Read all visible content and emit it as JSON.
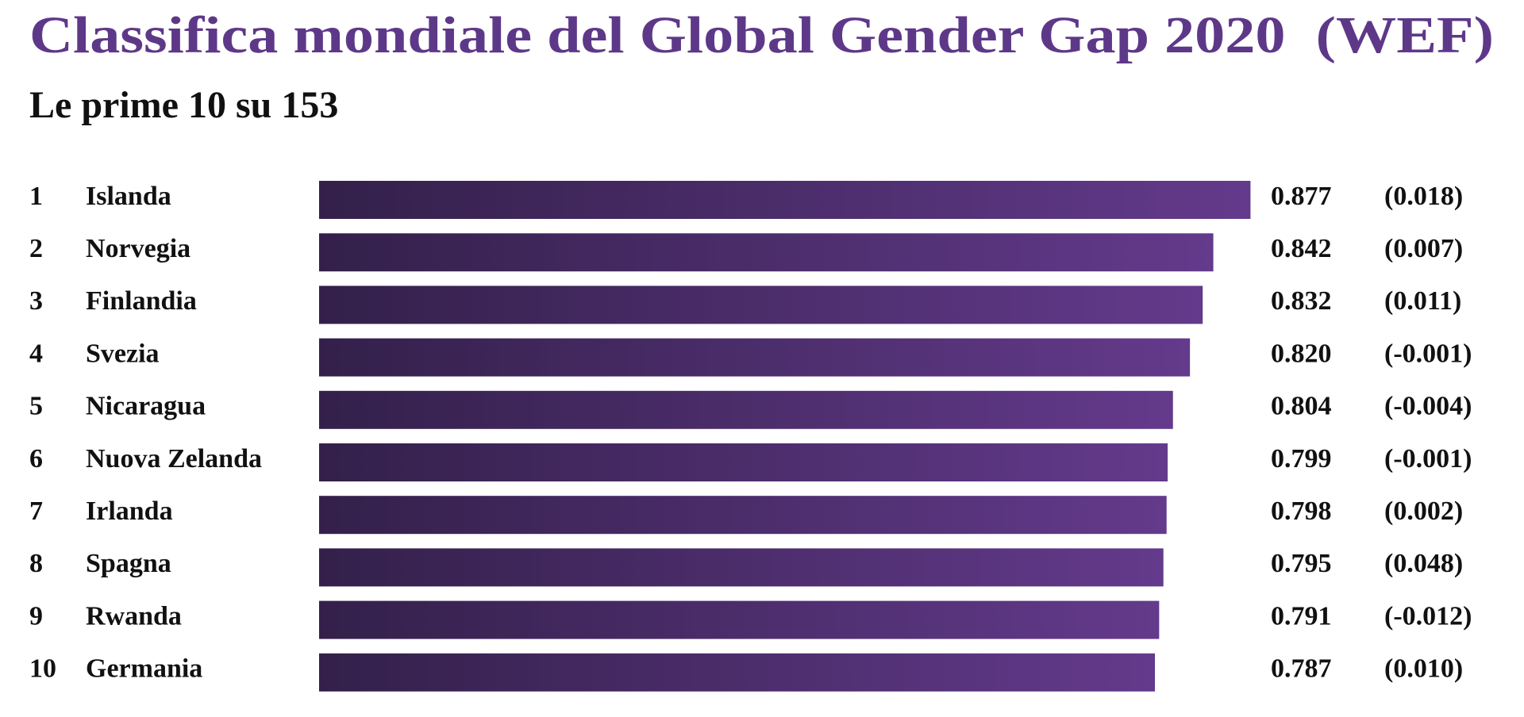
{
  "chart_data": {
    "type": "bar",
    "orientation": "horizontal",
    "title": "Classifica mondiale del Global Gender Gap 2020  (WEF)",
    "subtitle": "Le prime 10 su 153",
    "ranks": [
      1,
      2,
      3,
      4,
      5,
      6,
      7,
      8,
      9,
      10
    ],
    "categories": [
      "Islanda",
      "Norvegia",
      "Finlandia",
      "Svezia",
      "Nicaragua",
      "Nuova Zelanda",
      "Irlanda",
      "Spagna",
      "Rwanda",
      "Germania"
    ],
    "values": [
      0.877,
      0.842,
      0.832,
      0.82,
      0.804,
      0.799,
      0.798,
      0.795,
      0.791,
      0.787
    ],
    "value_labels": [
      "0.877",
      "0.842",
      "0.832",
      "0.820",
      "0.804",
      "0.799",
      "0.798",
      "0.795",
      "0.791",
      "0.787"
    ],
    "changes": [
      "(0.018)",
      "(0.007)",
      "(0.011)",
      "(-0.001)",
      "(-0.004)",
      "(-0.001)",
      "(0.002)",
      "(0.048)",
      "(-0.012)",
      "(0.010)"
    ],
    "color_start": "#33204a",
    "color_end": "#643a8c",
    "title_color": "#5e3888"
  }
}
